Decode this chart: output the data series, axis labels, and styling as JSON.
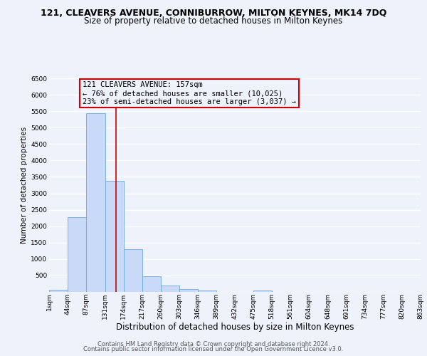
{
  "title": "121, CLEAVERS AVENUE, CONNIBURROW, MILTON KEYNES, MK14 7DQ",
  "subtitle": "Size of property relative to detached houses in Milton Keynes",
  "xlabel": "Distribution of detached houses by size in Milton Keynes",
  "ylabel": "Number of detached properties",
  "footnote1": "Contains HM Land Registry data © Crown copyright and database right 2024.",
  "footnote2": "Contains public sector information licensed under the Open Government Licence v3.0.",
  "bar_edges": [
    1,
    44,
    87,
    131,
    174,
    217,
    260,
    303,
    346,
    389,
    432,
    475,
    518,
    561,
    604,
    648,
    691,
    734,
    777,
    820,
    863
  ],
  "bar_heights": [
    70,
    2280,
    5430,
    3380,
    1290,
    470,
    200,
    80,
    50,
    0,
    0,
    50,
    0,
    0,
    0,
    0,
    0,
    0,
    0,
    0
  ],
  "bar_color": "#c9daf8",
  "bar_edgecolor": "#6fa8dc",
  "property_line_x": 157,
  "property_line_color": "#cc0000",
  "annotation_line1": "121 CLEAVERS AVENUE: 157sqm",
  "annotation_line2": "← 76% of detached houses are smaller (10,025)",
  "annotation_line3": "23% of semi-detached houses are larger (3,037) →",
  "annotation_box_color": "#cc0000",
  "ylim": [
    0,
    6500
  ],
  "yticks": [
    0,
    500,
    1000,
    1500,
    2000,
    2500,
    3000,
    3500,
    4000,
    4500,
    5000,
    5500,
    6000,
    6500
  ],
  "tick_labels": [
    "1sqm",
    "44sqm",
    "87sqm",
    "131sqm",
    "174sqm",
    "217sqm",
    "260sqm",
    "303sqm",
    "346sqm",
    "389sqm",
    "432sqm",
    "475sqm",
    "518sqm",
    "561sqm",
    "604sqm",
    "648sqm",
    "691sqm",
    "734sqm",
    "777sqm",
    "820sqm",
    "863sqm"
  ],
  "background_color": "#eef2fb",
  "plot_bg_color": "#eef2fb",
  "grid_color": "#ffffff",
  "title_fontsize": 9,
  "subtitle_fontsize": 8.5,
  "xlabel_fontsize": 8.5,
  "ylabel_fontsize": 7.5,
  "tick_fontsize": 6.5,
  "annotation_fontsize": 7.5,
  "footnote_fontsize": 6
}
